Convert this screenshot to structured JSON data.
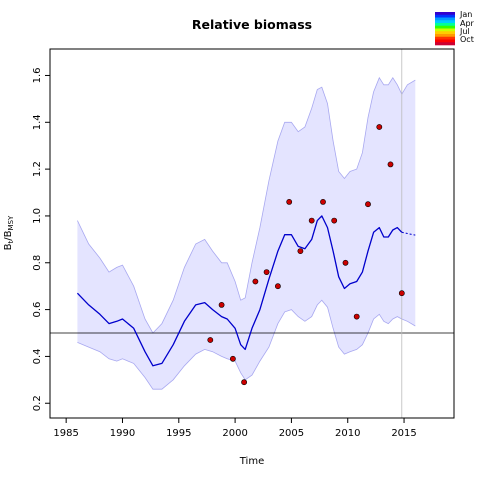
{
  "chart_data": {
    "type": "line",
    "title": "Relative biomass",
    "xlabel": "Time",
    "ylabel_main": "B",
    "ylabel_sub1": "t",
    "ylabel_mid": "/B",
    "ylabel_sub2": "MSY",
    "xlim": [
      1985,
      2018
    ],
    "ylim": [
      0.2,
      1.65
    ],
    "x_ticks": [
      1985,
      1990,
      1995,
      2000,
      2005,
      2010,
      2015
    ],
    "y_ticks": [
      0.2,
      0.4,
      0.6,
      0.8,
      1.0,
      1.2,
      1.4,
      1.6
    ],
    "reference_line_y": 0.5,
    "vertical_line_x": 2014.8,
    "grid": false,
    "colors": {
      "median": "#0000cc",
      "band_fill": "#e4e4ff",
      "band_edge": "#a8a8f0",
      "points": "#cc0000",
      "refline": "#000000",
      "vline": "#bbbbbb"
    },
    "legend": {
      "position": "top-right",
      "labels": [
        "Jan",
        "Apr",
        "Jul",
        "Oct"
      ],
      "colors": [
        "#3300cc",
        "#0033ff",
        "#0099ff",
        "#00ccff",
        "#00ff99",
        "#33ff00",
        "#ccff00",
        "#ffcc00",
        "#ff9900",
        "#ff3300",
        "#ff0000",
        "#cc0033"
      ]
    },
    "median": {
      "x": [
        1986,
        1987,
        1988,
        1988.8,
        1989.5,
        1990,
        1991,
        1992,
        1992.7,
        1993.5,
        1994.5,
        1995.5,
        1996.5,
        1997.3,
        1998,
        1998.8,
        1999.3,
        2000,
        2000.5,
        2000.9,
        2001.5,
        2002.2,
        2003,
        2003.8,
        2004.4,
        2005,
        2005.6,
        2006.2,
        2006.8,
        2007.3,
        2007.7,
        2008.2,
        2008.7,
        2009.2,
        2009.7,
        2010.2,
        2010.8,
        2011.3,
        2011.8,
        2012.3,
        2012.8,
        2013.2,
        2013.6,
        2014,
        2014.4,
        2014.8
      ],
      "y": [
        0.67,
        0.62,
        0.58,
        0.54,
        0.55,
        0.56,
        0.52,
        0.42,
        0.36,
        0.37,
        0.45,
        0.55,
        0.62,
        0.63,
        0.6,
        0.57,
        0.56,
        0.52,
        0.45,
        0.43,
        0.52,
        0.6,
        0.73,
        0.85,
        0.92,
        0.92,
        0.87,
        0.86,
        0.9,
        0.98,
        1.0,
        0.95,
        0.85,
        0.74,
        0.69,
        0.71,
        0.72,
        0.76,
        0.85,
        0.93,
        0.95,
        0.91,
        0.91,
        0.94,
        0.95,
        0.93
      ],
      "forecast_x": [
        2014.8,
        2015.3,
        2016
      ],
      "forecast_y": [
        0.93,
        0.925,
        0.918
      ]
    },
    "band": {
      "x": [
        1986,
        1987,
        1988,
        1988.8,
        1989.5,
        1990,
        1991,
        1992,
        1992.7,
        1993.5,
        1994.5,
        1995.5,
        1996.5,
        1997.3,
        1998,
        1998.8,
        1999.3,
        2000,
        2000.5,
        2000.9,
        2001.5,
        2002.2,
        2003,
        2003.8,
        2004.4,
        2005,
        2005.6,
        2006.2,
        2006.8,
        2007.3,
        2007.7,
        2008.2,
        2008.7,
        2009.2,
        2009.7,
        2010.2,
        2010.8,
        2011.3,
        2011.8,
        2012.3,
        2012.8,
        2013.2,
        2013.6,
        2014,
        2014.4,
        2014.8,
        2015.3,
        2016
      ],
      "upper": [
        0.98,
        0.88,
        0.82,
        0.76,
        0.78,
        0.79,
        0.7,
        0.56,
        0.5,
        0.54,
        0.64,
        0.78,
        0.88,
        0.9,
        0.85,
        0.8,
        0.8,
        0.72,
        0.64,
        0.65,
        0.8,
        0.95,
        1.15,
        1.32,
        1.4,
        1.4,
        1.36,
        1.38,
        1.46,
        1.54,
        1.55,
        1.48,
        1.32,
        1.19,
        1.16,
        1.19,
        1.2,
        1.27,
        1.42,
        1.53,
        1.59,
        1.56,
        1.56,
        1.59,
        1.56,
        1.52,
        1.56,
        1.58
      ],
      "lower": [
        0.46,
        0.44,
        0.42,
        0.39,
        0.38,
        0.39,
        0.37,
        0.31,
        0.26,
        0.26,
        0.3,
        0.36,
        0.41,
        0.43,
        0.42,
        0.4,
        0.39,
        0.38,
        0.33,
        0.3,
        0.32,
        0.38,
        0.44,
        0.54,
        0.59,
        0.6,
        0.57,
        0.55,
        0.57,
        0.62,
        0.64,
        0.61,
        0.52,
        0.44,
        0.41,
        0.42,
        0.43,
        0.45,
        0.5,
        0.56,
        0.58,
        0.55,
        0.54,
        0.56,
        0.57,
        0.56,
        0.55,
        0.53
      ]
    },
    "points": {
      "x": [
        1997.8,
        1998.8,
        1999.8,
        2000.8,
        2001.8,
        2002.8,
        2003.8,
        2004.8,
        2005.8,
        2006.8,
        2007.8,
        2008.8,
        2009.8,
        2010.8,
        2011.8,
        2012.8,
        2013.8,
        2014.8
      ],
      "y": [
        0.47,
        0.62,
        0.39,
        0.29,
        0.72,
        0.76,
        0.7,
        1.06,
        0.85,
        0.98,
        1.06,
        0.98,
        0.8,
        0.57,
        1.05,
        1.38,
        1.22,
        0.67
      ]
    }
  }
}
